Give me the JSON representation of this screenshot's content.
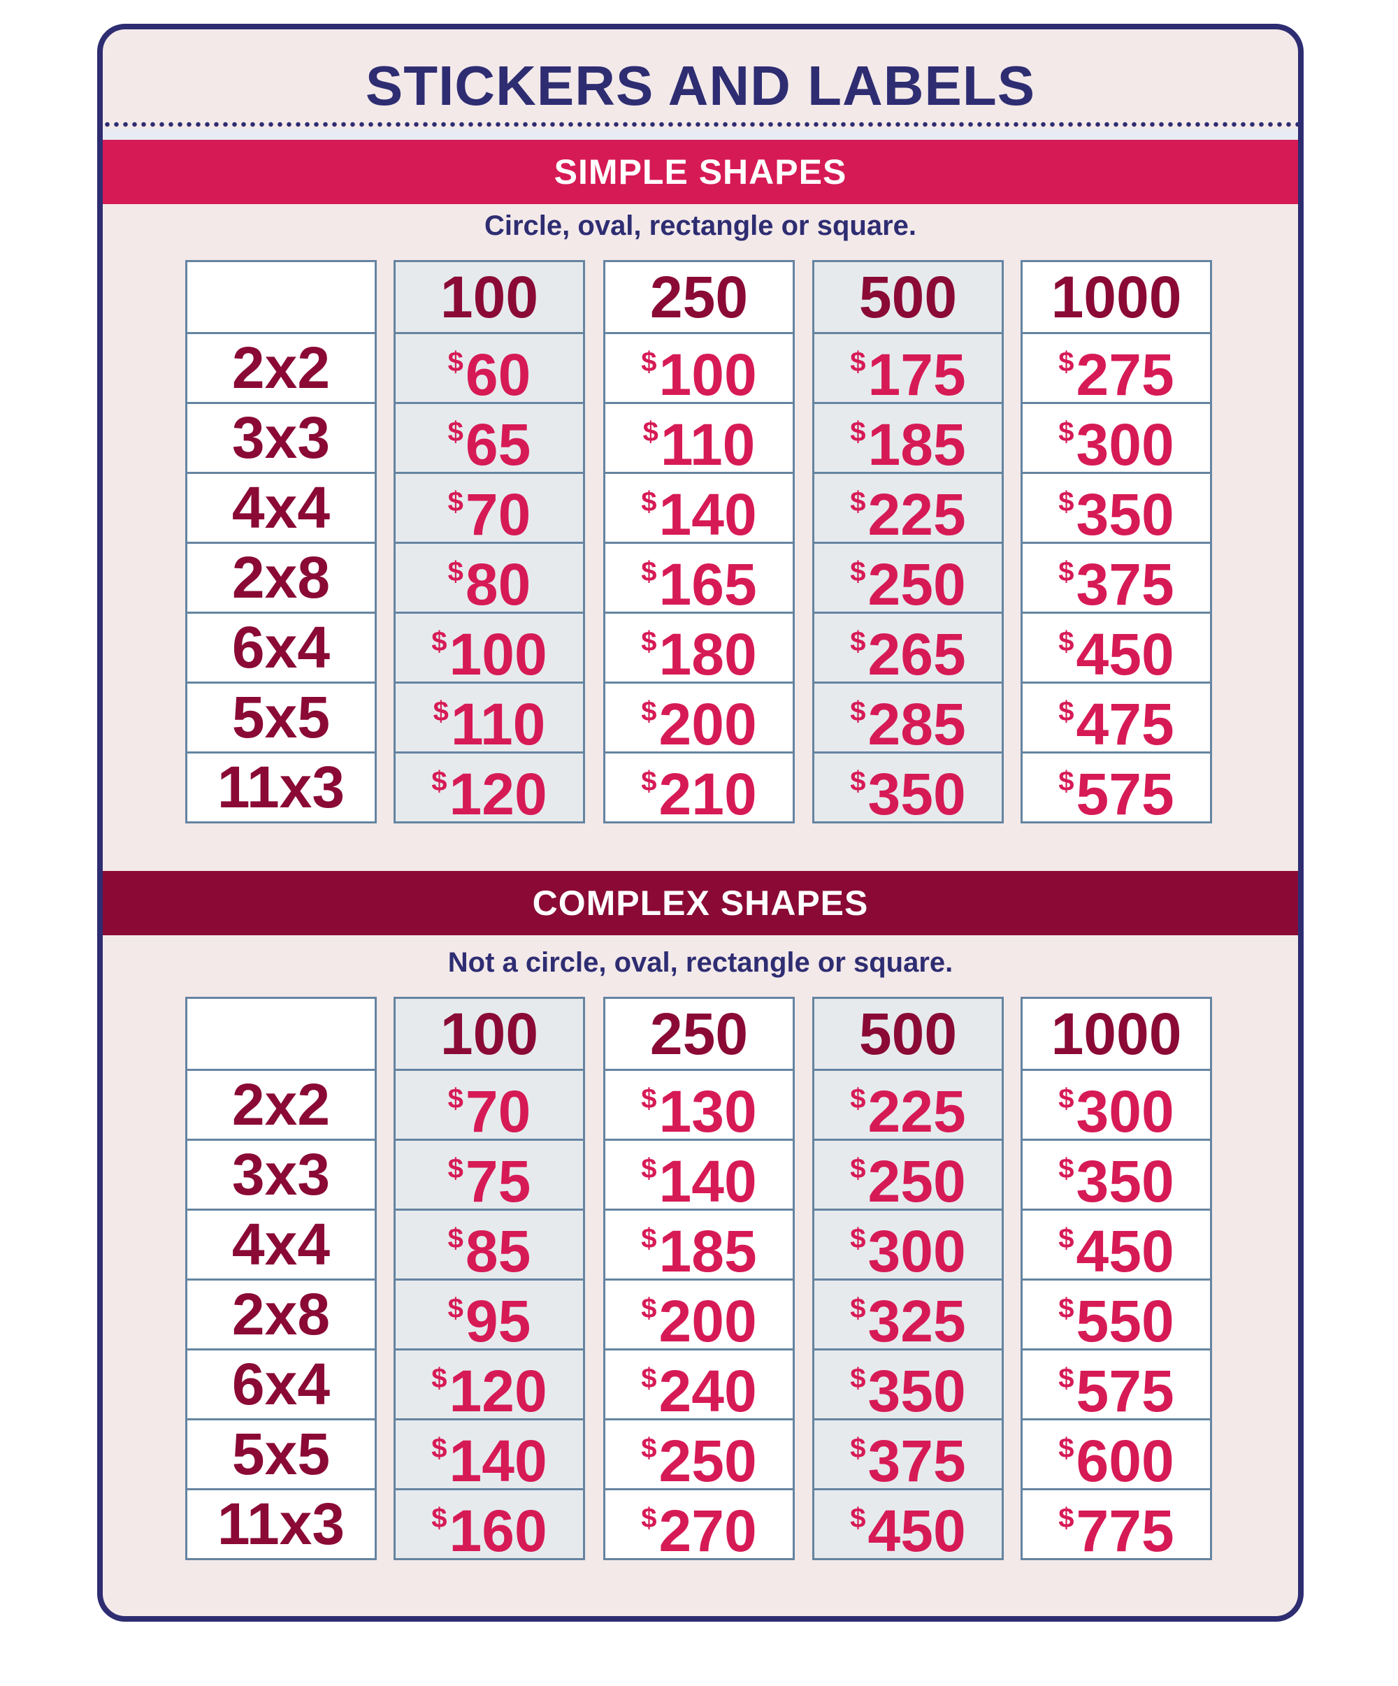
{
  "title": "STICKERS AND LABELS",
  "colors": {
    "navy": "#2e2d72",
    "pink": "#d61a55",
    "maroon": "#8a0a35",
    "background": "#f3e9e9",
    "shaded_column": "#e6eaed",
    "grid_border": "#6584a0"
  },
  "sections": [
    {
      "heading": "SIMPLE SHAPES",
      "subtitle": "Circle, oval, rectangle or square.",
      "quantities": [
        "100",
        "250",
        "500",
        "1000"
      ],
      "rows": [
        {
          "size": "2x2",
          "prices": [
            "$60",
            "$100",
            "$175",
            "$275"
          ]
        },
        {
          "size": "3x3",
          "prices": [
            "$65",
            "$110",
            "$185",
            "$300"
          ]
        },
        {
          "size": "4x4",
          "prices": [
            "$70",
            "$140",
            "$225",
            "$350"
          ]
        },
        {
          "size": "2x8",
          "prices": [
            "$80",
            "$165",
            "$250",
            "$375"
          ]
        },
        {
          "size": "6x4",
          "prices": [
            "$100",
            "$180",
            "$265",
            "$450"
          ]
        },
        {
          "size": "5x5",
          "prices": [
            "$110",
            "$200",
            "$285",
            "$475"
          ]
        },
        {
          "size": "11x3",
          "prices": [
            "$120",
            "$210",
            "$350",
            "$575"
          ]
        }
      ]
    },
    {
      "heading": "COMPLEX SHAPES",
      "subtitle": "Not a circle, oval, rectangle or square.",
      "quantities": [
        "100",
        "250",
        "500",
        "1000"
      ],
      "rows": [
        {
          "size": "2x2",
          "prices": [
            "$70",
            "$130",
            "$225",
            "$300"
          ]
        },
        {
          "size": "3x3",
          "prices": [
            "$75",
            "$140",
            "$250",
            "$350"
          ]
        },
        {
          "size": "4x4",
          "prices": [
            "$85",
            "$185",
            "$300",
            "$450"
          ]
        },
        {
          "size": "2x8",
          "prices": [
            "$95",
            "$200",
            "$325",
            "$550"
          ]
        },
        {
          "size": "6x4",
          "prices": [
            "$120",
            "$240",
            "$350",
            "$575"
          ]
        },
        {
          "size": "5x5",
          "prices": [
            "$140",
            "$250",
            "$375",
            "$600"
          ]
        },
        {
          "size": "11x3",
          "prices": [
            "$160",
            "$270",
            "$450",
            "$775"
          ]
        }
      ]
    }
  ]
}
